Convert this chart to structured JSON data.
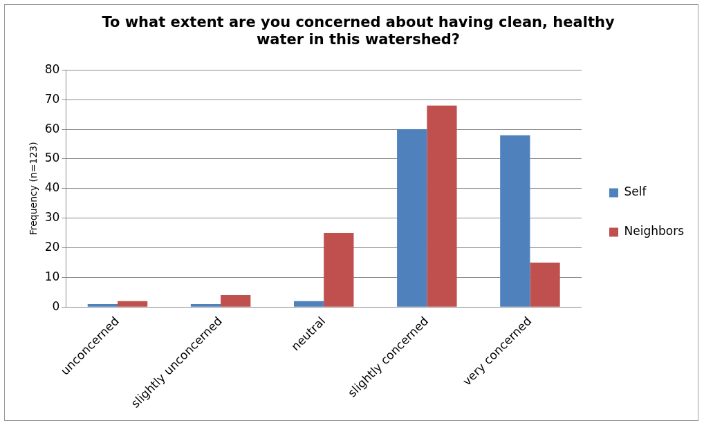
{
  "chart_data": {
    "type": "bar",
    "title": "To what extent are you concerned about having clean, healthy water in this watershed?",
    "ylabel": "Frequency (n=123)",
    "categories": [
      "unconcerned",
      "slightly unconcerned",
      "neutral",
      "slightly concerned",
      "very concerned"
    ],
    "series": [
      {
        "name": "Self",
        "color": "#4f81bd",
        "values": [
          1,
          1,
          2,
          60,
          58
        ]
      },
      {
        "name": "Neighbors",
        "color": "#c0504d",
        "values": [
          2,
          4,
          25,
          68,
          15
        ]
      }
    ],
    "ylim": [
      0,
      80
    ],
    "yticks": [
      0,
      10,
      20,
      30,
      40,
      50,
      60,
      70,
      80
    ],
    "grid": "y",
    "legend": "right"
  }
}
